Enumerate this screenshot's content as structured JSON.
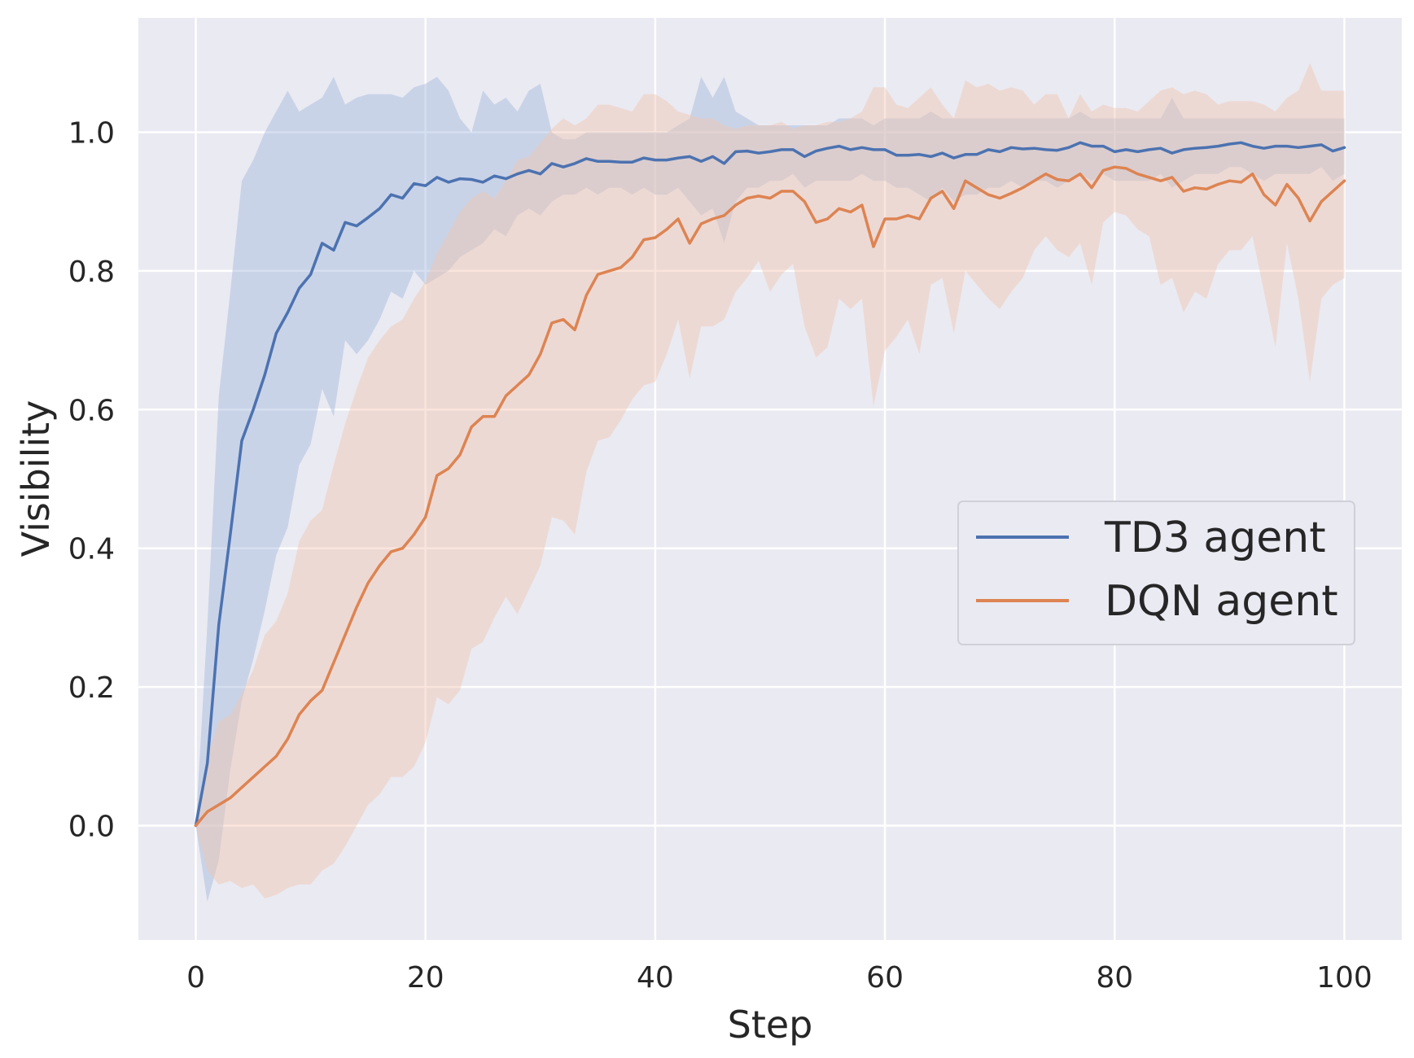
{
  "chart_data": {
    "type": "line",
    "title": "",
    "xlabel": "Step",
    "ylabel": "Visibility",
    "xlim": [
      -5,
      105
    ],
    "ylim": [
      -0.165,
      1.165
    ],
    "xticks": [
      0,
      20,
      40,
      60,
      80,
      100
    ],
    "xtick_labels": [
      "0",
      "20",
      "40",
      "60",
      "80",
      "100"
    ],
    "yticks": [
      0.0,
      0.2,
      0.4,
      0.6,
      0.8,
      1.0
    ],
    "ytick_labels": [
      "0.0",
      "0.2",
      "0.4",
      "0.6",
      "0.8",
      "1.0"
    ],
    "grid": true,
    "legend_position": "center-right",
    "x": [
      0,
      1,
      2,
      3,
      4,
      5,
      6,
      7,
      8,
      9,
      10,
      11,
      12,
      13,
      14,
      15,
      16,
      17,
      18,
      19,
      20,
      21,
      22,
      23,
      24,
      25,
      26,
      27,
      28,
      29,
      30,
      31,
      32,
      33,
      34,
      35,
      36,
      37,
      38,
      39,
      40,
      41,
      42,
      43,
      44,
      45,
      46,
      47,
      48,
      49,
      50,
      51,
      52,
      53,
      54,
      55,
      56,
      57,
      58,
      59,
      60,
      61,
      62,
      63,
      64,
      65,
      66,
      67,
      68,
      69,
      70,
      71,
      72,
      73,
      74,
      75,
      76,
      77,
      78,
      79,
      80,
      81,
      82,
      83,
      84,
      85,
      86,
      87,
      88,
      89,
      90,
      91,
      92,
      93,
      94,
      95,
      96,
      97,
      98,
      99,
      100
    ],
    "series": [
      {
        "name": "TD3 agent",
        "color": "#4c72b0",
        "band_color": "#a1b8dc",
        "values": [
          0.0,
          0.09,
          0.29,
          0.42,
          0.555,
          0.6,
          0.65,
          0.71,
          0.74,
          0.775,
          0.795,
          0.84,
          0.83,
          0.87,
          0.865,
          0.877,
          0.89,
          0.91,
          0.905,
          0.926,
          0.923,
          0.935,
          0.928,
          0.933,
          0.932,
          0.928,
          0.937,
          0.933,
          0.94,
          0.945,
          0.94,
          0.955,
          0.95,
          0.955,
          0.962,
          0.958,
          0.958,
          0.957,
          0.957,
          0.963,
          0.96,
          0.96,
          0.963,
          0.965,
          0.958,
          0.965,
          0.955,
          0.972,
          0.973,
          0.97,
          0.972,
          0.975,
          0.975,
          0.965,
          0.973,
          0.977,
          0.98,
          0.975,
          0.978,
          0.975,
          0.975,
          0.967,
          0.967,
          0.968,
          0.965,
          0.97,
          0.963,
          0.968,
          0.968,
          0.975,
          0.972,
          0.978,
          0.976,
          0.977,
          0.975,
          0.974,
          0.978,
          0.985,
          0.98,
          0.98,
          0.972,
          0.975,
          0.972,
          0.975,
          0.977,
          0.97,
          0.975,
          0.977,
          0.978,
          0.98,
          0.983,
          0.985,
          0.98,
          0.977,
          0.98,
          0.98,
          0.978,
          0.98,
          0.982,
          0.973,
          0.978
        ],
        "lower": [
          0.0,
          -0.11,
          -0.05,
          0.08,
          0.18,
          0.24,
          0.31,
          0.39,
          0.43,
          0.52,
          0.55,
          0.63,
          0.59,
          0.7,
          0.68,
          0.7,
          0.73,
          0.77,
          0.76,
          0.8,
          0.78,
          0.79,
          0.8,
          0.82,
          0.83,
          0.84,
          0.86,
          0.85,
          0.88,
          0.89,
          0.88,
          0.9,
          0.91,
          0.91,
          0.92,
          0.91,
          0.92,
          0.92,
          0.91,
          0.92,
          0.91,
          0.91,
          0.92,
          0.9,
          0.88,
          0.89,
          0.84,
          0.9,
          0.92,
          0.92,
          0.93,
          0.93,
          0.94,
          0.92,
          0.93,
          0.93,
          0.93,
          0.93,
          0.94,
          0.93,
          0.93,
          0.92,
          0.92,
          0.91,
          0.9,
          0.92,
          0.9,
          0.91,
          0.91,
          0.92,
          0.92,
          0.93,
          0.92,
          0.93,
          0.93,
          0.92,
          0.93,
          0.94,
          0.93,
          0.94,
          0.93,
          0.93,
          0.93,
          0.93,
          0.94,
          0.92,
          0.93,
          0.94,
          0.94,
          0.94,
          0.95,
          0.95,
          0.94,
          0.93,
          0.94,
          0.94,
          0.94,
          0.94,
          0.95,
          0.93,
          0.94
        ],
        "upper": [
          0.0,
          0.29,
          0.62,
          0.77,
          0.93,
          0.96,
          1.0,
          1.03,
          1.06,
          1.03,
          1.04,
          1.05,
          1.08,
          1.04,
          1.05,
          1.055,
          1.055,
          1.055,
          1.05,
          1.065,
          1.07,
          1.08,
          1.06,
          1.02,
          1.0,
          1.06,
          1.04,
          1.05,
          1.03,
          1.06,
          1.07,
          1.0,
          0.99,
          0.99,
          1.0,
          1.0,
          1.0,
          1.0,
          1.0,
          1.0,
          1.0,
          1.0,
          1.01,
          1.02,
          1.08,
          1.05,
          1.08,
          1.03,
          1.02,
          1.01,
          1.01,
          1.01,
          1.01,
          1.01,
          1.01,
          1.01,
          1.02,
          1.02,
          1.02,
          1.01,
          1.02,
          1.02,
          1.02,
          1.02,
          1.03,
          1.02,
          1.02,
          1.02,
          1.02,
          1.02,
          1.02,
          1.02,
          1.02,
          1.02,
          1.02,
          1.02,
          1.02,
          1.03,
          1.02,
          1.02,
          1.02,
          1.02,
          1.02,
          1.02,
          1.02,
          1.05,
          1.02,
          1.02,
          1.02,
          1.02,
          1.02,
          1.02,
          1.02,
          1.02,
          1.02,
          1.02,
          1.02,
          1.02,
          1.02,
          1.02,
          1.02
        ]
      },
      {
        "name": "DQN agent",
        "color": "#dd8452",
        "band_color": "#f2c6b0",
        "values": [
          0.0,
          0.02,
          0.03,
          0.04,
          0.055,
          0.07,
          0.085,
          0.1,
          0.125,
          0.16,
          0.18,
          0.195,
          0.235,
          0.275,
          0.315,
          0.35,
          0.375,
          0.395,
          0.4,
          0.42,
          0.445,
          0.505,
          0.515,
          0.535,
          0.575,
          0.59,
          0.59,
          0.62,
          0.635,
          0.65,
          0.68,
          0.725,
          0.73,
          0.715,
          0.765,
          0.795,
          0.8,
          0.805,
          0.82,
          0.845,
          0.848,
          0.86,
          0.875,
          0.84,
          0.868,
          0.875,
          0.88,
          0.895,
          0.905,
          0.908,
          0.905,
          0.915,
          0.915,
          0.9,
          0.87,
          0.875,
          0.89,
          0.885,
          0.895,
          0.835,
          0.875,
          0.875,
          0.88,
          0.875,
          0.905,
          0.915,
          0.89,
          0.93,
          0.92,
          0.91,
          0.905,
          0.912,
          0.92,
          0.93,
          0.94,
          0.932,
          0.93,
          0.94,
          0.92,
          0.945,
          0.95,
          0.948,
          0.94,
          0.935,
          0.93,
          0.935,
          0.915,
          0.92,
          0.918,
          0.925,
          0.93,
          0.928,
          0.94,
          0.91,
          0.895,
          0.925,
          0.905,
          0.872,
          0.9,
          0.915,
          0.93
        ],
        "lower": [
          0.0,
          -0.065,
          -0.085,
          -0.08,
          -0.09,
          -0.085,
          -0.105,
          -0.1,
          -0.09,
          -0.085,
          -0.085,
          -0.065,
          -0.055,
          -0.03,
          0.0,
          0.03,
          0.045,
          0.07,
          0.07,
          0.085,
          0.12,
          0.185,
          0.175,
          0.195,
          0.255,
          0.265,
          0.3,
          0.33,
          0.305,
          0.34,
          0.375,
          0.445,
          0.44,
          0.42,
          0.51,
          0.555,
          0.56,
          0.585,
          0.615,
          0.635,
          0.64,
          0.68,
          0.73,
          0.645,
          0.72,
          0.72,
          0.73,
          0.77,
          0.79,
          0.815,
          0.77,
          0.795,
          0.81,
          0.72,
          0.675,
          0.69,
          0.76,
          0.745,
          0.76,
          0.605,
          0.685,
          0.705,
          0.73,
          0.68,
          0.78,
          0.79,
          0.71,
          0.8,
          0.78,
          0.76,
          0.745,
          0.77,
          0.79,
          0.83,
          0.85,
          0.83,
          0.82,
          0.84,
          0.78,
          0.87,
          0.885,
          0.88,
          0.86,
          0.85,
          0.78,
          0.79,
          0.74,
          0.77,
          0.76,
          0.81,
          0.83,
          0.83,
          0.85,
          0.77,
          0.69,
          0.84,
          0.76,
          0.64,
          0.76,
          0.78,
          0.79
        ],
        "upper": [
          0.0,
          0.1,
          0.15,
          0.16,
          0.19,
          0.225,
          0.275,
          0.295,
          0.335,
          0.41,
          0.44,
          0.455,
          0.52,
          0.58,
          0.63,
          0.675,
          0.7,
          0.72,
          0.73,
          0.76,
          0.785,
          0.825,
          0.855,
          0.885,
          0.905,
          0.915,
          0.905,
          0.93,
          0.96,
          0.965,
          0.985,
          1.005,
          1.02,
          1.01,
          1.02,
          1.04,
          1.04,
          1.035,
          1.03,
          1.055,
          1.055,
          1.045,
          1.03,
          1.025,
          1.02,
          1.02,
          1.01,
          1.005,
          1.01,
          1.01,
          1.01,
          1.015,
          1.005,
          1.01,
          1.01,
          1.015,
          1.015,
          1.02,
          1.03,
          1.065,
          1.065,
          1.04,
          1.035,
          1.05,
          1.065,
          1.04,
          1.02,
          1.075,
          1.065,
          1.07,
          1.06,
          1.065,
          1.06,
          1.04,
          1.055,
          1.055,
          1.02,
          1.055,
          1.03,
          1.04,
          1.035,
          1.035,
          1.03,
          1.045,
          1.06,
          1.065,
          1.055,
          1.06,
          1.055,
          1.04,
          1.045,
          1.045,
          1.045,
          1.04,
          1.03,
          1.05,
          1.06,
          1.1,
          1.06,
          1.06,
          1.06
        ]
      }
    ]
  }
}
